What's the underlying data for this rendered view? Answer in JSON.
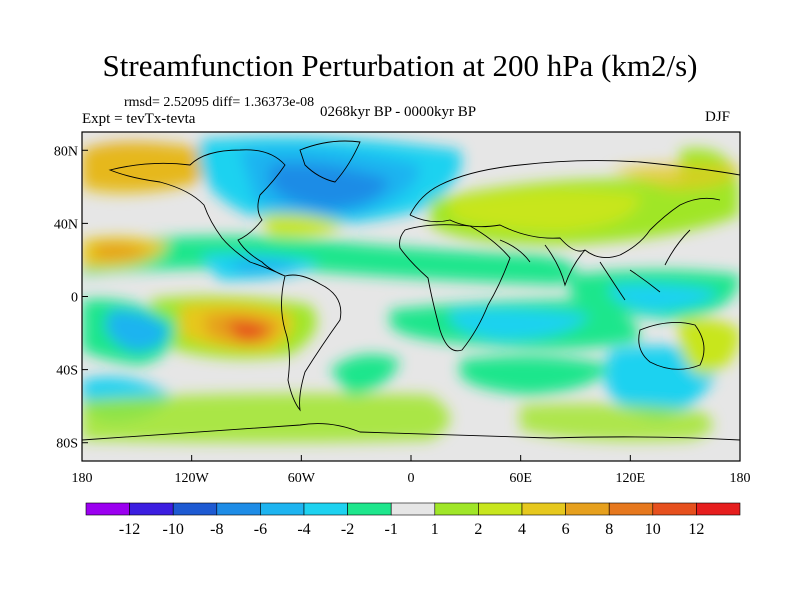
{
  "title": "Streamfunction Perturbation at 200 hPa (km2/s)",
  "stats": "rmsd= 2.52095 diff= 1.36373e-08",
  "experiment": "Expt = tevTx-tevta",
  "period": "0268kyr BP - 0000kyr BP",
  "season": "DJF",
  "map": {
    "lon_range": [
      -180,
      180
    ],
    "lat_range": [
      -90,
      90
    ],
    "lat_ticks": [
      {
        "value": 80,
        "label": "80N"
      },
      {
        "value": 40,
        "label": "40N"
      },
      {
        "value": 0,
        "label": "0"
      },
      {
        "value": -40,
        "label": "40S"
      },
      {
        "value": -80,
        "label": "80S"
      }
    ],
    "lon_ticks": [
      {
        "value": -180,
        "label": "180"
      },
      {
        "value": -120,
        "label": "120W"
      },
      {
        "value": -60,
        "label": "60W"
      },
      {
        "value": 0,
        "label": "0"
      },
      {
        "value": 60,
        "label": "60E"
      },
      {
        "value": 120,
        "label": "120E"
      },
      {
        "value": 180,
        "label": "180"
      }
    ]
  },
  "colorbar": {
    "labels": [
      "-12",
      "-10",
      "-8",
      "-6",
      "-4",
      "-2",
      "-1",
      "1",
      "2",
      "4",
      "6",
      "8",
      "10",
      "12"
    ],
    "colors": [
      "#9b00f0",
      "#3c1ee0",
      "#1e5ad2",
      "#1e8ce6",
      "#1eb4f0",
      "#1ed2f0",
      "#1ee68c",
      "#e6e6e6",
      "#a0e628",
      "#c8e61e",
      "#e6c81e",
      "#e6a01e",
      "#e6781e",
      "#e6501e",
      "#e61e1e"
    ]
  }
}
